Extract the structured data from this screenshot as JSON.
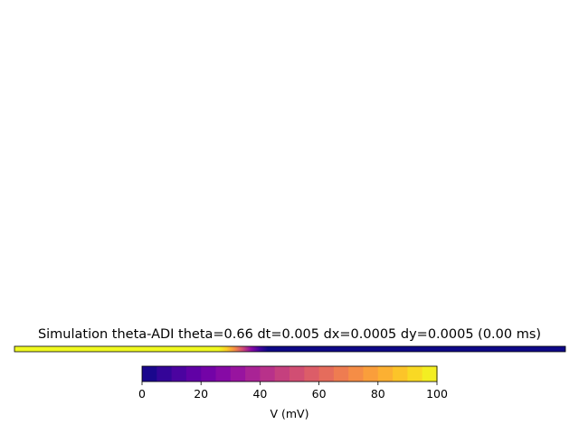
{
  "chart_data": {
    "type": "heatmap",
    "title": "Simulation theta-ADI theta=0.66 dt=0.005 dx=0.0005 dy=0.0005 (0.00 ms)",
    "colormap": "plasma",
    "field_profile": {
      "description_units": "fraction of domain width vs V (mV)",
      "points": [
        {
          "x": 0.0,
          "v": 100
        },
        {
          "x": 0.37,
          "v": 100
        },
        {
          "x": 0.385,
          "v": 90
        },
        {
          "x": 0.4,
          "v": 72
        },
        {
          "x": 0.415,
          "v": 50
        },
        {
          "x": 0.43,
          "v": 28
        },
        {
          "x": 0.445,
          "v": 10
        },
        {
          "x": 0.46,
          "v": 0
        },
        {
          "x": 1.0,
          "v": 0
        }
      ]
    },
    "colorbar": {
      "label": "V (mV)",
      "range": [
        0,
        100
      ],
      "levels": 20,
      "ticks": [
        {
          "value": 0,
          "label": "0"
        },
        {
          "value": 20,
          "label": "20"
        },
        {
          "value": 40,
          "label": "40"
        },
        {
          "value": 60,
          "label": "60"
        },
        {
          "value": 80,
          "label": "80"
        },
        {
          "value": 100,
          "label": "100"
        }
      ]
    }
  }
}
